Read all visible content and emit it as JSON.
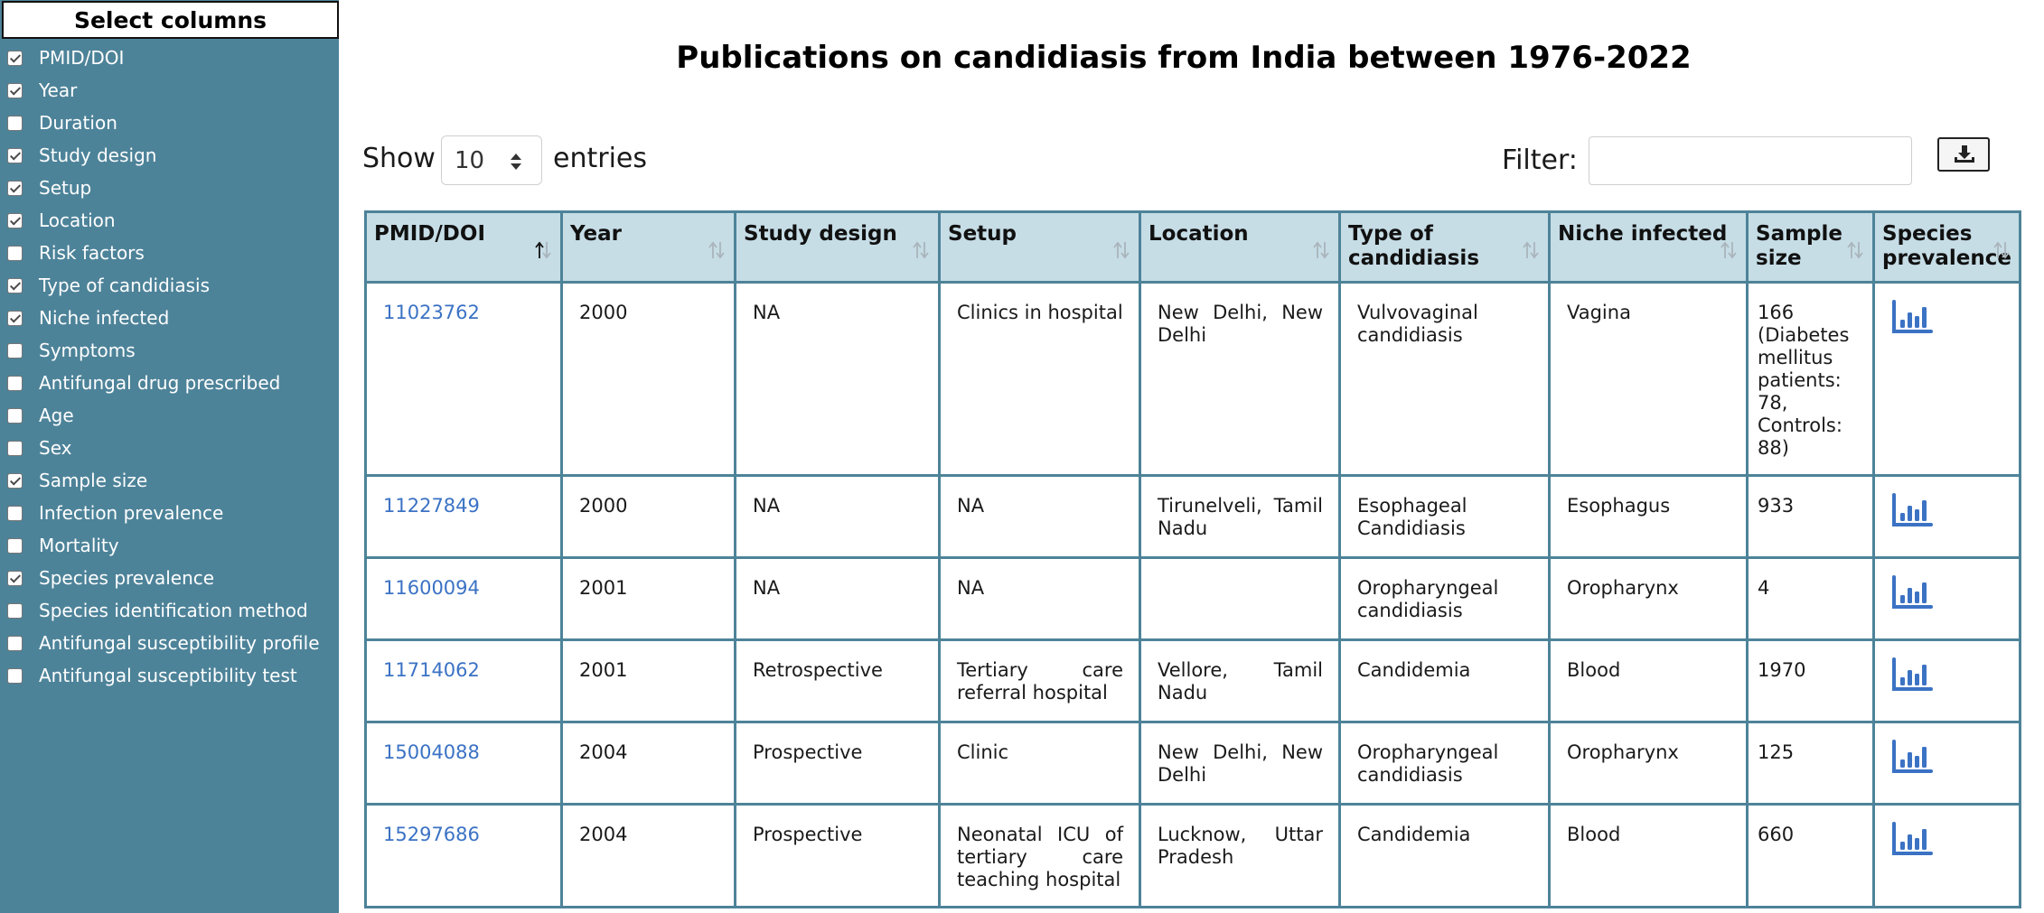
{
  "sidebar": {
    "title": "Select columns",
    "columns": [
      {
        "label": "PMID/DOI",
        "checked": true
      },
      {
        "label": "Year",
        "checked": true
      },
      {
        "label": "Duration",
        "checked": false
      },
      {
        "label": "Study design",
        "checked": true
      },
      {
        "label": "Setup",
        "checked": true
      },
      {
        "label": "Location",
        "checked": true
      },
      {
        "label": "Risk factors",
        "checked": false
      },
      {
        "label": "Type of candidiasis",
        "checked": true
      },
      {
        "label": "Niche infected",
        "checked": true
      },
      {
        "label": "Symptoms",
        "checked": false
      },
      {
        "label": "Antifungal drug prescribed",
        "checked": false
      },
      {
        "label": "Age",
        "checked": false
      },
      {
        "label": "Sex",
        "checked": false
      },
      {
        "label": "Sample size",
        "checked": true
      },
      {
        "label": "Infection prevalence",
        "checked": false
      },
      {
        "label": "Mortality",
        "checked": false
      },
      {
        "label": "Species prevalence",
        "checked": true
      },
      {
        "label": "Species identification method",
        "checked": false
      },
      {
        "label": "Antifungal susceptibility profile",
        "checked": false
      },
      {
        "label": "Antifungal susceptibility test",
        "checked": false
      }
    ]
  },
  "page": {
    "title": "Publications on candidiasis from India between 1976-2022"
  },
  "controls": {
    "show_label": "Show",
    "entries_value": "10",
    "entries_label": "entries",
    "filter_label": "Filter:",
    "filter_value": ""
  },
  "table": {
    "headers": [
      "PMID/DOI",
      "Year",
      "Study design",
      "Setup",
      "Location",
      "Type of candidiasis",
      "Niche infected",
      "Sample size",
      "Species prevalence"
    ],
    "sorted_column": "PMID/DOI",
    "rows": [
      {
        "pmid": "11023762",
        "year": "2000",
        "design": "NA",
        "setup": "Clinics in hospital",
        "location": "New Delhi, New Delhi",
        "type": "Vulvovaginal candidiasis",
        "niche": "Vagina",
        "sample": "166 (Diabetes mellitus patients: 78, Controls: 88)"
      },
      {
        "pmid": "11227849",
        "year": "2000",
        "design": "NA",
        "setup": "NA",
        "location": "Tirunelveli, Tamil Nadu",
        "type": "Esophageal Candidiasis",
        "niche": "Esophagus",
        "sample": "933"
      },
      {
        "pmid": "11600094",
        "year": "2001",
        "design": "NA",
        "setup": "NA",
        "location": "",
        "type": "Oropharyngeal candidiasis",
        "niche": "Oropharynx",
        "sample": "4"
      },
      {
        "pmid": "11714062",
        "year": "2001",
        "design": "Retrospective",
        "setup": "Tertiary care referral hospital",
        "location": "Vellore, Tamil Nadu",
        "type": "Candidemia",
        "niche": "Blood",
        "sample": "1970"
      },
      {
        "pmid": "15004088",
        "year": "2004",
        "design": "Prospective",
        "setup": "Clinic",
        "location": "New Delhi, New Delhi",
        "type": "Oropharyngeal candidiasis",
        "niche": "Oropharynx",
        "sample": "125"
      },
      {
        "pmid": "15297686",
        "year": "2004",
        "design": "Prospective",
        "setup": "Neonatal ICU of tertiary care teaching hospital",
        "location": "Lucknow, Uttar Pradesh",
        "type": "Candidemia",
        "niche": "Blood",
        "sample": "660"
      }
    ]
  },
  "icons": {
    "download": "download-icon",
    "species": "bar-chart-icon"
  },
  "colors": {
    "sidebar_bg": "#4d8399",
    "header_bg": "#c6dde6",
    "link": "#3b72c4",
    "icon": "#3b72c4"
  }
}
